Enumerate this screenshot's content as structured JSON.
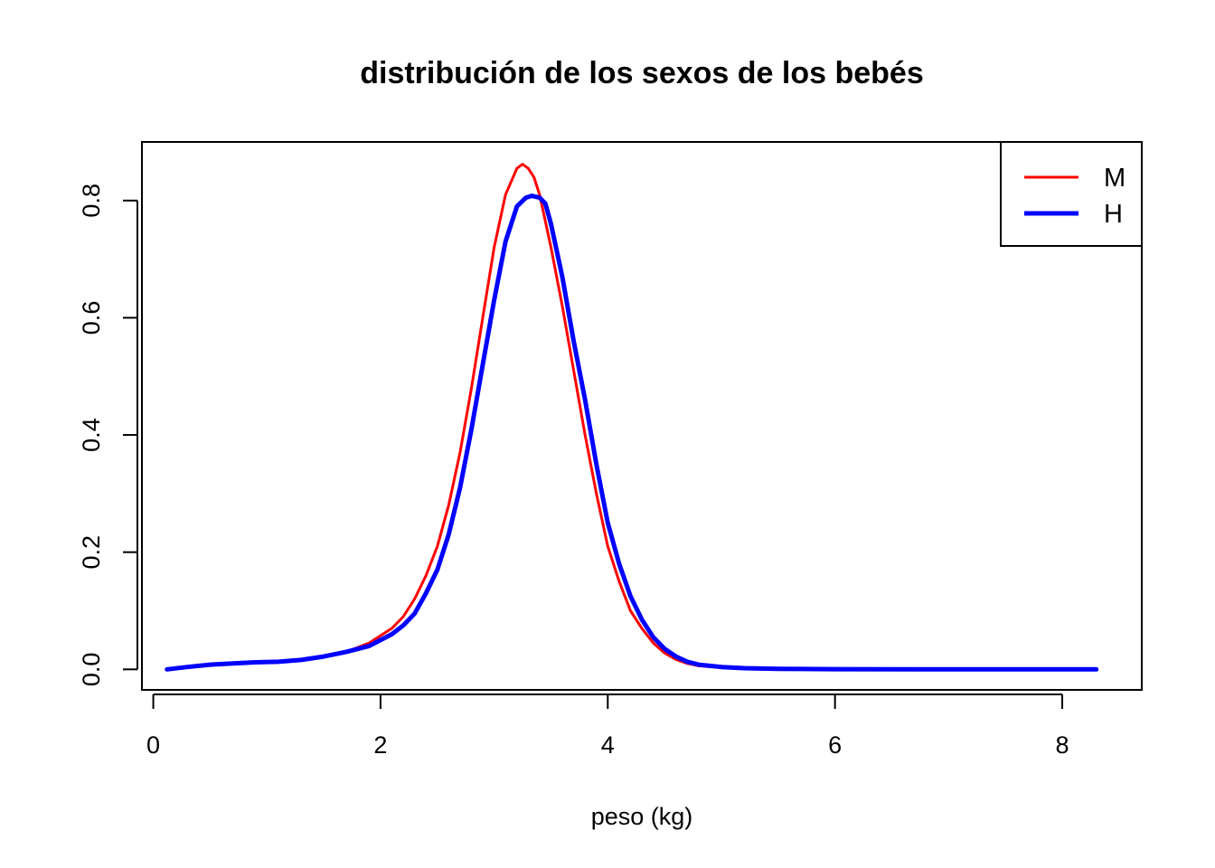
{
  "chart_data": {
    "type": "line",
    "title": "distribución de los sexos de los bebés",
    "xlabel": "peso (kg)",
    "ylabel": "",
    "xlim": [
      -0.1,
      8.7
    ],
    "ylim": [
      -0.035,
      0.9
    ],
    "xticks": [
      0,
      2,
      4,
      6,
      8
    ],
    "yticks": [
      0.0,
      0.2,
      0.4,
      0.6,
      0.8
    ],
    "xtick_labels": [
      "0",
      "2",
      "4",
      "6",
      "8"
    ],
    "ytick_labels": [
      "0.0",
      "0.2",
      "0.4",
      "0.6",
      "0.8"
    ],
    "grid": false,
    "legend_position": "top-right",
    "series": [
      {
        "name": "M",
        "color": "#ff0000",
        "x": [
          0.12,
          0.3,
          0.5,
          0.7,
          0.9,
          1.1,
          1.3,
          1.5,
          1.7,
          1.9,
          2.1,
          2.2,
          2.3,
          2.4,
          2.5,
          2.6,
          2.7,
          2.8,
          2.9,
          3.0,
          3.1,
          3.2,
          3.25,
          3.3,
          3.35,
          3.4,
          3.5,
          3.6,
          3.7,
          3.8,
          3.9,
          4.0,
          4.1,
          4.2,
          4.3,
          4.4,
          4.5,
          4.6,
          4.7,
          4.8,
          5.0,
          5.2,
          5.5,
          6.0,
          7.0,
          8.3
        ],
        "y": [
          0.0,
          0.004,
          0.008,
          0.01,
          0.012,
          0.013,
          0.016,
          0.022,
          0.03,
          0.045,
          0.07,
          0.09,
          0.12,
          0.16,
          0.21,
          0.28,
          0.37,
          0.48,
          0.6,
          0.72,
          0.81,
          0.855,
          0.862,
          0.855,
          0.84,
          0.81,
          0.72,
          0.62,
          0.51,
          0.4,
          0.3,
          0.21,
          0.15,
          0.1,
          0.07,
          0.045,
          0.028,
          0.017,
          0.01,
          0.006,
          0.003,
          0.0015,
          0.0008,
          0.0003,
          0.0,
          0.0
        ]
      },
      {
        "name": "H",
        "color": "#0000ff",
        "x": [
          0.12,
          0.3,
          0.5,
          0.7,
          0.9,
          1.1,
          1.3,
          1.5,
          1.7,
          1.9,
          2.1,
          2.2,
          2.3,
          2.4,
          2.5,
          2.6,
          2.7,
          2.8,
          2.9,
          3.0,
          3.1,
          3.2,
          3.28,
          3.33,
          3.4,
          3.45,
          3.5,
          3.6,
          3.7,
          3.8,
          3.9,
          4.0,
          4.1,
          4.2,
          4.3,
          4.4,
          4.5,
          4.6,
          4.7,
          4.8,
          5.0,
          5.2,
          5.5,
          6.0,
          7.0,
          8.3
        ],
        "y": [
          0.0,
          0.004,
          0.008,
          0.01,
          0.012,
          0.013,
          0.016,
          0.022,
          0.03,
          0.04,
          0.06,
          0.075,
          0.095,
          0.13,
          0.17,
          0.23,
          0.31,
          0.41,
          0.52,
          0.63,
          0.73,
          0.79,
          0.805,
          0.808,
          0.805,
          0.795,
          0.76,
          0.67,
          0.56,
          0.46,
          0.35,
          0.25,
          0.18,
          0.125,
          0.085,
          0.055,
          0.035,
          0.022,
          0.013,
          0.008,
          0.004,
          0.002,
          0.001,
          0.0004,
          0.0,
          0.0
        ]
      }
    ]
  }
}
